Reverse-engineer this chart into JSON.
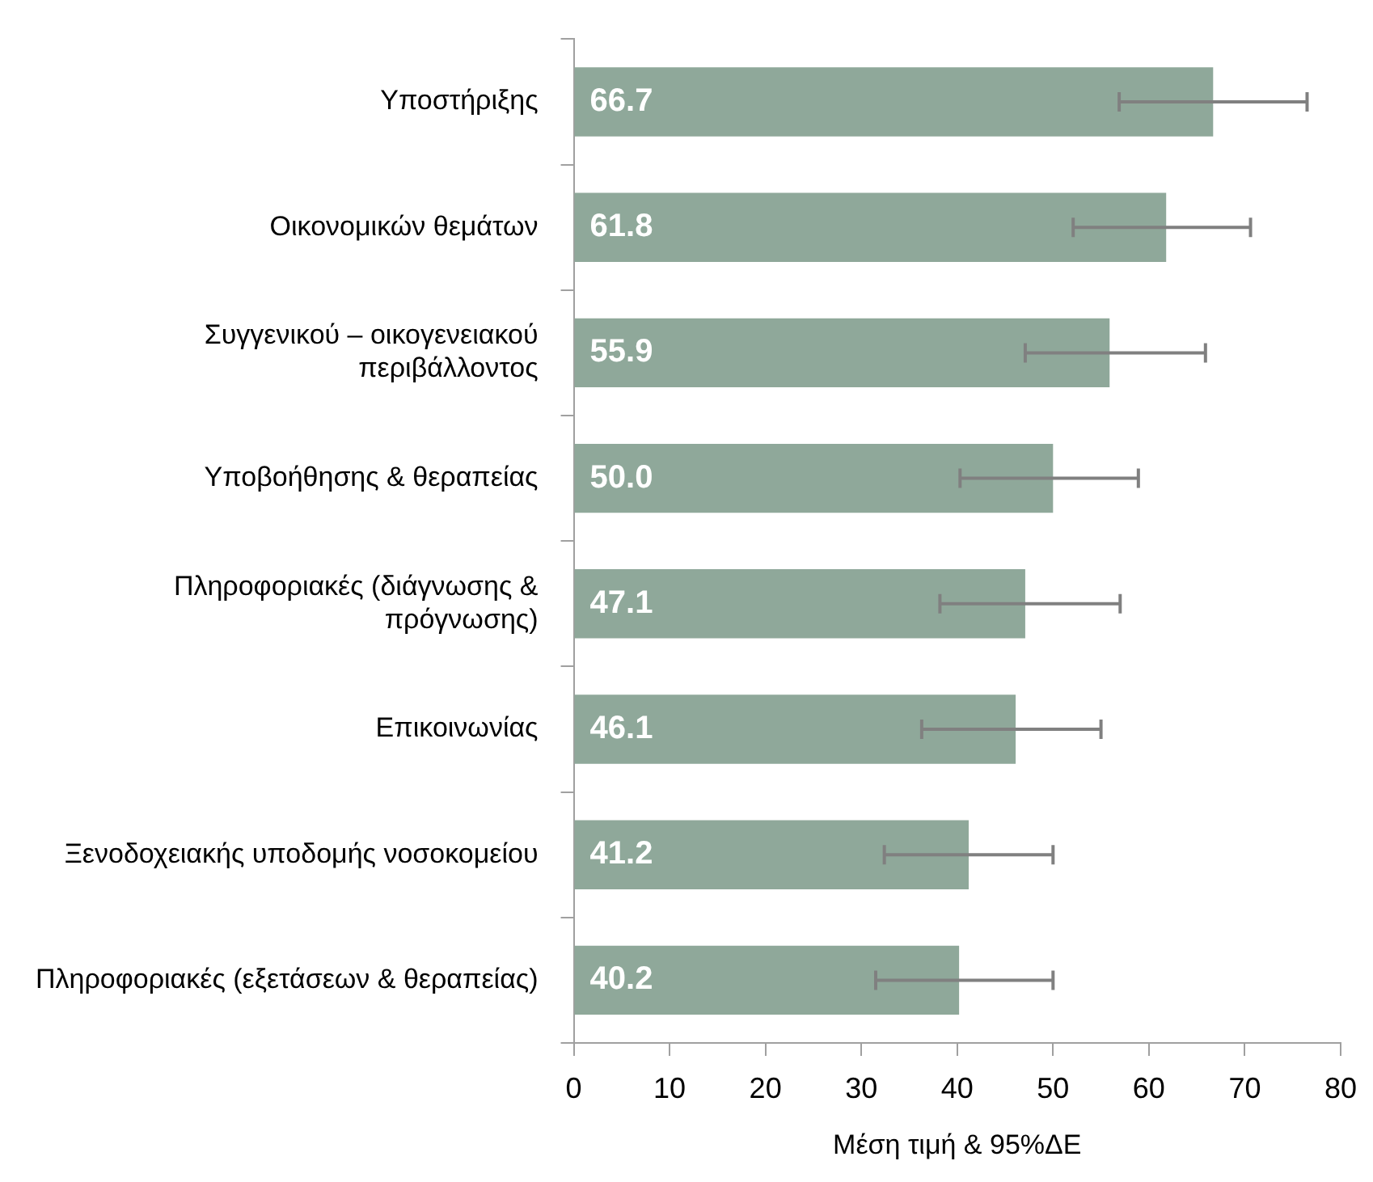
{
  "chart_data": {
    "type": "bar",
    "orientation": "horizontal",
    "xlabel": "Μέση τιμή & 95%ΔΕ",
    "categories": [
      "Υποστήριξης",
      "Οικονομικών θεμάτων",
      "Συγγενικού – οικογενειακού περιβάλλοντος",
      "Υποβοήθησης & θεραπείας",
      "Πληροφοριακές (διάγνωσης & πρόγνωσης)",
      "Επικοινωνίας",
      "Ξενοδοχειακής υποδομής νοσοκομείου",
      "Πληροφοριακές (εξετάσεων & θεραπείας)"
    ],
    "values": [
      66.7,
      61.8,
      55.9,
      50.0,
      47.1,
      46.1,
      41.2,
      40.2
    ],
    "errors": [
      [
        56.9,
        76.5
      ],
      [
        52.1,
        70.6
      ],
      [
        47.1,
        65.9
      ],
      [
        40.3,
        58.9
      ],
      [
        38.2,
        57.0
      ],
      [
        36.3,
        55.0
      ],
      [
        32.4,
        50.0
      ],
      [
        31.5,
        50.0
      ]
    ],
    "value_labels": [
      "66.7",
      "61.8",
      "55.9",
      "50.0",
      "47.1",
      "46.1",
      "41.2",
      "40.2"
    ],
    "color": "#8fa89a",
    "grid": false,
    "legend": false,
    "xlim": [
      0,
      80
    ],
    "xticks": [
      0,
      10,
      20,
      30,
      40,
      50,
      60,
      70,
      80
    ]
  }
}
